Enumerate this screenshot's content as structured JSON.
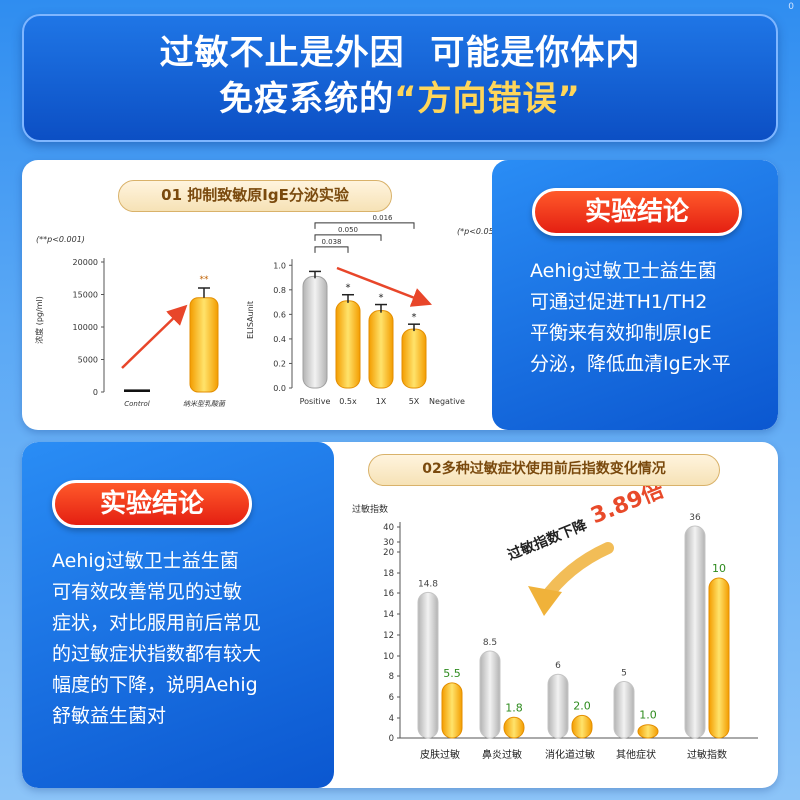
{
  "page_number": "0",
  "header": {
    "line1_a": "过敏不止是外因",
    "line1_b": "可能是你体内",
    "line2_a": "免疫系统的",
    "line2_b": "“方向错误”"
  },
  "section1": {
    "title": "01 抑制致敏原IgE分泌实验",
    "conclusion_label": "实验结论",
    "conclusion_lines": [
      "Aehig过敏卫士益生菌",
      "可通过促进TH1/TH2",
      "平衡来有效抑制原IgE",
      "分泌，降低血清IgE水平"
    ]
  },
  "section2": {
    "title": "02多种过敏症状使用前后指数变化情况",
    "conclusion_label": "实验结论",
    "conclusion_lines": [
      "Aehig过敏卫士益生菌",
      "可有效改善常见的过敏",
      "症状，对比服用前后常见",
      "的过敏症状指数都有较大",
      "幅度的下降，说明Aehig",
      "舒敏益生菌对"
    ],
    "annotation_prefix": "过敏指数下降",
    "annotation_value": "3.89倍"
  },
  "chart_data": [
    {
      "type": "bar",
      "annotation": "(**p<0.001)",
      "ylabel": "浓度 (pg/ml)",
      "categories": [
        "Control",
        "纳米型乳酸菌"
      ],
      "values": [
        400,
        14500
      ],
      "error": [
        0,
        1500
      ],
      "significance": [
        "",
        "**"
      ],
      "yticks": [
        0,
        5000,
        10000,
        15000,
        20000
      ],
      "ylim": [
        0,
        20000
      ],
      "colors": [
        "#111111",
        "#f7a700"
      ]
    },
    {
      "type": "bar",
      "annotation": "(*p<0.05)",
      "ylabel": "ELISAunit",
      "categories": [
        "Positive",
        "0.5x",
        "1X",
        "5X",
        "Negative"
      ],
      "values": [
        0.91,
        0.71,
        0.63,
        0.48,
        null
      ],
      "error": [
        0.04,
        0.05,
        0.05,
        0.04,
        0
      ],
      "significance": [
        "",
        "*",
        "*",
        "*",
        ""
      ],
      "yticks": [
        0.0,
        0.2,
        0.4,
        0.6,
        0.8,
        1.0
      ],
      "ylim": [
        0,
        1.1
      ],
      "brackets": [
        {
          "label": "0.038",
          "from": 0,
          "to": 1
        },
        {
          "label": "0.050",
          "from": 0,
          "to": 2
        },
        {
          "label": "0.016",
          "from": 0,
          "to": 3
        }
      ],
      "colors": [
        "#b8b8b8",
        "#f7a700"
      ]
    },
    {
      "type": "bar",
      "ylabel": "过敏指数",
      "categories": [
        "皮肤过敏",
        "鼻炎过敏",
        "消化道过敏",
        "其他症状",
        "过敏指数"
      ],
      "series": [
        {
          "values": [
            14.8,
            8.5,
            6.0,
            5.0,
            36
          ]
        },
        {
          "values": [
            5.5,
            1.8,
            2.0,
            1.0,
            10
          ]
        }
      ],
      "yticks": [
        0,
        4,
        6,
        8,
        10,
        12,
        14,
        16,
        18,
        20,
        30,
        40
      ],
      "ylim": [
        0,
        40
      ],
      "colors": [
        "#c8c8c8",
        "#f7a700"
      ]
    }
  ]
}
